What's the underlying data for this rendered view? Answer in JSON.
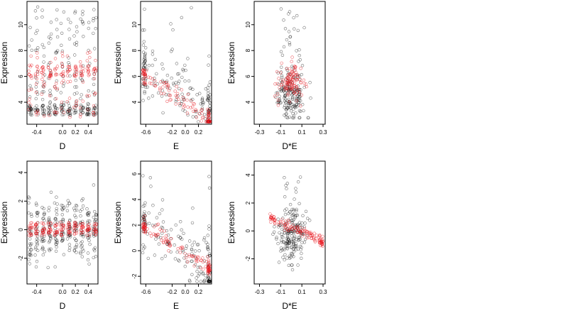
{
  "colors": {
    "black_points": "#000000",
    "red_points": "#e8141c",
    "axis": "#000000"
  },
  "chart_data": [
    {
      "type": "scatter",
      "panel": "row1-col1",
      "xlabel": "D",
      "ylabel": "Expression",
      "xlim": [
        -0.55,
        0.55
      ],
      "ylim": [
        2.3,
        11.8
      ],
      "xticks": [
        -0.4,
        0.0,
        0.2,
        0.4
      ],
      "xtick_labels": [
        "-0.4",
        "0.0",
        "0.2",
        "0.4"
      ],
      "yticks": [
        4,
        6,
        8,
        10
      ],
      "ytick_labels": [
        "4",
        "6",
        "8",
        "10"
      ],
      "series": [
        {
          "color": "black",
          "x_columns": [
            -0.5,
            -0.4,
            -0.3,
            -0.2,
            -0.1,
            0.0,
            0.1,
            0.2,
            0.3,
            0.4,
            0.5
          ],
          "y_range": [
            3.0,
            11.4
          ],
          "cluster_near_y": 3.0
        },
        {
          "color": "red",
          "x_columns": [
            -0.5,
            -0.4,
            -0.3,
            -0.2,
            -0.1,
            0.0,
            0.1,
            0.2,
            0.3,
            0.4,
            0.5
          ],
          "y_range": [
            2.8,
            8.0
          ],
          "cluster_near_y": 6.0
        }
      ]
    },
    {
      "type": "scatter",
      "panel": "row1-col2",
      "xlabel": "E",
      "ylabel": "Expression",
      "xlim": [
        -0.68,
        0.4
      ],
      "ylim": [
        2.3,
        11.8
      ],
      "xticks": [
        -0.6,
        -0.2,
        0.0,
        0.2
      ],
      "xtick_labels": [
        "-0.6",
        "-0.2",
        "0.0",
        "0.2"
      ],
      "yticks": [
        4,
        6,
        8,
        10
      ],
      "ytick_labels": [
        "4",
        "6",
        "8",
        "10"
      ],
      "series": [
        {
          "color": "black",
          "trend": [
            [
              -0.65,
              7.0
            ],
            [
              0.38,
              3.0
            ]
          ],
          "y_range": [
            2.5,
            11.4
          ]
        },
        {
          "color": "red",
          "trend": [
            [
              -0.65,
              6.2
            ],
            [
              0.38,
              2.6
            ]
          ],
          "y_range": [
            2.5,
            8.6
          ]
        }
      ]
    },
    {
      "type": "scatter",
      "panel": "row1-col3",
      "xlabel": "D*E",
      "ylabel": "Expression",
      "xlim": [
        -0.35,
        0.32
      ],
      "ylim": [
        2.3,
        11.8
      ],
      "xticks": [
        -0.3,
        -0.1,
        0.1,
        0.3
      ],
      "xtick_labels": [
        "-0.3",
        "-0.1",
        "0.1",
        "0.3"
      ],
      "yticks": [
        4,
        6,
        8,
        10
      ],
      "ytick_labels": [
        "4",
        "6",
        "8",
        "10"
      ],
      "series": [
        {
          "color": "black",
          "center": [
            0.0,
            4.5
          ],
          "y_range": [
            2.8,
            11.4
          ]
        },
        {
          "color": "red",
          "center": [
            0.0,
            5.5
          ],
          "y_range": [
            3.0,
            7.5
          ]
        }
      ]
    },
    {
      "type": "scatter",
      "panel": "row2-col1",
      "xlabel": "D",
      "ylabel": "Expression",
      "xlim": [
        -0.55,
        0.55
      ],
      "ylim": [
        -3.8,
        4.8
      ],
      "xticks": [
        -0.4,
        0.0,
        0.2,
        0.4
      ],
      "xtick_labels": [
        "-0.4",
        "0.0",
        "0.2",
        "0.4"
      ],
      "yticks": [
        -2,
        0,
        2,
        4
      ],
      "ytick_labels": [
        "-2",
        "0",
        "2",
        "4"
      ],
      "series": [
        {
          "color": "black",
          "x_columns": [
            -0.5,
            -0.4,
            -0.3,
            -0.2,
            -0.1,
            0.0,
            0.1,
            0.2,
            0.3,
            0.4,
            0.5
          ],
          "y_range": [
            -3.4,
            4.4
          ]
        },
        {
          "color": "red",
          "x_columns": [
            -0.5,
            -0.4,
            -0.3,
            -0.2,
            -0.1,
            0.0,
            0.1,
            0.2,
            0.3,
            0.4,
            0.5
          ],
          "y_range": [
            -0.4,
            0.5
          ]
        }
      ]
    },
    {
      "type": "scatter",
      "panel": "row2-col2",
      "xlabel": "E",
      "ylabel": "Expression",
      "xlim": [
        -0.68,
        0.4
      ],
      "ylim": [
        -2.6,
        7.0
      ],
      "xticks": [
        -0.6,
        -0.2,
        0.0,
        0.2
      ],
      "xtick_labels": [
        "-0.6",
        "-0.2",
        "0.0",
        "0.2"
      ],
      "yticks": [
        -2,
        0,
        2,
        4,
        6
      ],
      "ytick_labels": [
        "-2",
        "0",
        "2",
        "4",
        "6"
      ],
      "series": [
        {
          "color": "black",
          "trend": [
            [
              -0.65,
              2.2
            ],
            [
              0.38,
              -1.6
            ]
          ],
          "y_range": [
            -2.4,
            6.6
          ]
        },
        {
          "color": "red",
          "trend": [
            [
              -0.65,
              2.0
            ],
            [
              0.38,
              -1.4
            ]
          ],
          "y_range": [
            -2.0,
            3.0
          ]
        }
      ]
    },
    {
      "type": "scatter",
      "panel": "row2-col3",
      "xlabel": "D*E",
      "ylabel": "Expression",
      "xlim": [
        -0.35,
        0.32
      ],
      "ylim": [
        -3.8,
        5.0
      ],
      "xticks": [
        -0.3,
        -0.1,
        0.1,
        0.3
      ],
      "xtick_labels": [
        "-0.3",
        "-0.1",
        "0.1",
        "0.3"
      ],
      "yticks": [
        -2,
        0,
        2,
        4
      ],
      "ytick_labels": [
        "-2",
        "0",
        "2",
        "4"
      ],
      "series": [
        {
          "color": "black",
          "center": [
            0.0,
            -0.3
          ],
          "y_range": [
            -3.4,
            4.5
          ]
        },
        {
          "color": "red",
          "trend": [
            [
              -0.2,
              1.0
            ],
            [
              0.3,
              -0.8
            ]
          ],
          "y_range": [
            -1.2,
            1.8
          ]
        }
      ]
    }
  ]
}
